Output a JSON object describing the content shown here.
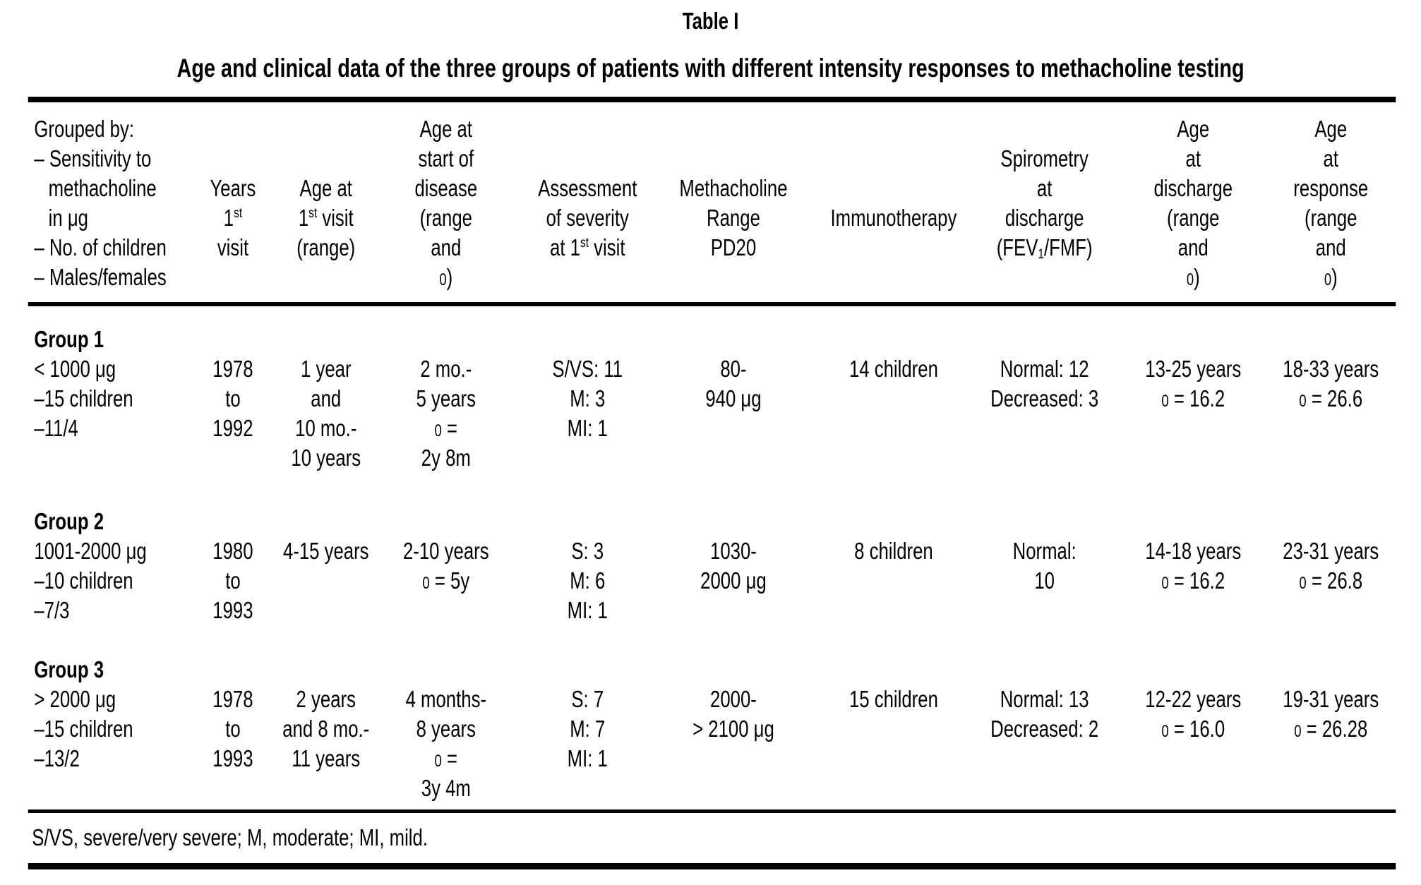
{
  "title": "Table I",
  "subtitle": "Age and clinical data of the three groups of patients with different intensity responses to methacholine testing",
  "footnote": "S/VS, severe/very severe; M, moderate; MI, mild.",
  "header_columns": [
    {
      "id": "grouped-by",
      "lines": [
        "Grouped by:",
        "– Sensitivity to",
        "  methacholine",
        "  in μg",
        "– No. of children",
        "– Males/females"
      ]
    },
    {
      "id": "years-first-visit",
      "lines": [
        "",
        "",
        "Years",
        "1[sup]st[/sup]",
        "visit",
        ""
      ]
    },
    {
      "id": "age-first-visit",
      "lines": [
        "",
        "",
        "Age at",
        "1[sup]st[/sup] visit",
        "(range)",
        ""
      ]
    },
    {
      "id": "age-start-disease",
      "lines": [
        "Age at",
        "start of",
        "disease",
        "(range",
        "and",
        "[sm]0[/sm])"
      ]
    },
    {
      "id": "assessment-severity",
      "lines": [
        "",
        "",
        "Assessment",
        "of severity",
        "at 1[sup]st[/sup] visit",
        ""
      ]
    },
    {
      "id": "methacholine-range",
      "lines": [
        "",
        "",
        "Methacholine",
        "Range",
        "PD20",
        ""
      ]
    },
    {
      "id": "immunotherapy",
      "lines": [
        "",
        "",
        "",
        "Immunotherapy",
        "",
        ""
      ]
    },
    {
      "id": "spirometry-discharge",
      "lines": [
        "",
        "Spirometry",
        "at",
        "discharge",
        "(FEV[sub]1[/sub]/FMF)",
        ""
      ]
    },
    {
      "id": "age-discharge",
      "lines": [
        "Age",
        "at",
        "discharge",
        "(range",
        "and",
        "[sm]0[/sm])"
      ]
    },
    {
      "id": "age-response",
      "lines": [
        "Age",
        "at",
        "response",
        "(range",
        "and",
        "[sm]0[/sm])"
      ]
    }
  ],
  "groups": [
    {
      "heading": "Group 1",
      "cells": [
        [
          "< 1000 μg",
          "–15 children",
          "–11/4"
        ],
        [
          "1978",
          "to",
          "1992"
        ],
        [
          "1 year",
          "and",
          "10 mo.-",
          "10 years"
        ],
        [
          "2 mo.-",
          "5 years",
          "[sm]0[/sm] =",
          "2y 8m"
        ],
        [
          "S/VS: 11",
          "M: 3",
          "MI: 1"
        ],
        [
          "80-",
          "940 μg"
        ],
        [
          "14 children"
        ],
        [
          "Normal: 12",
          "Decreased: 3"
        ],
        [
          "13-25 years",
          "[sm]0[/sm] = 16.2"
        ],
        [
          "18-33 years",
          "[sm]0[/sm] = 26.6"
        ]
      ]
    },
    {
      "heading": "Group 2",
      "cells": [
        [
          "1001-2000 μg",
          "–10 children",
          "–7/3"
        ],
        [
          "1980",
          "to",
          "1993"
        ],
        [
          "4-15 years"
        ],
        [
          "2-10 years",
          "[sm]0[/sm] = 5y"
        ],
        [
          "S: 3",
          "M: 6",
          "MI: 1"
        ],
        [
          "1030-",
          "2000 μg"
        ],
        [
          "8 children"
        ],
        [
          "Normal:",
          "10"
        ],
        [
          "14-18 years",
          "[sm]0[/sm] = 16.2"
        ],
        [
          "23-31 years",
          "[sm]0[/sm] = 26.8"
        ]
      ]
    },
    {
      "heading": "Group 3",
      "cells": [
        [
          "> 2000 μg",
          "–15 children",
          "–13/2"
        ],
        [
          "1978",
          "to",
          "1993"
        ],
        [
          "2 years",
          "and 8 mo.-",
          "11 years"
        ],
        [
          "4 months-",
          "8 years",
          "[sm]0[/sm] =",
          "3y 4m"
        ],
        [
          "S: 7",
          "M: 7",
          "MI: 1"
        ],
        [
          "2000-",
          "> 2100 μg"
        ],
        [
          "15 children"
        ],
        [
          "Normal: 13",
          "Decreased: 2"
        ],
        [
          "12-22 years",
          "[sm]0[/sm] = 16.0"
        ],
        [
          "19-31 years",
          "[sm]0[/sm] = 26.28"
        ]
      ]
    }
  ]
}
